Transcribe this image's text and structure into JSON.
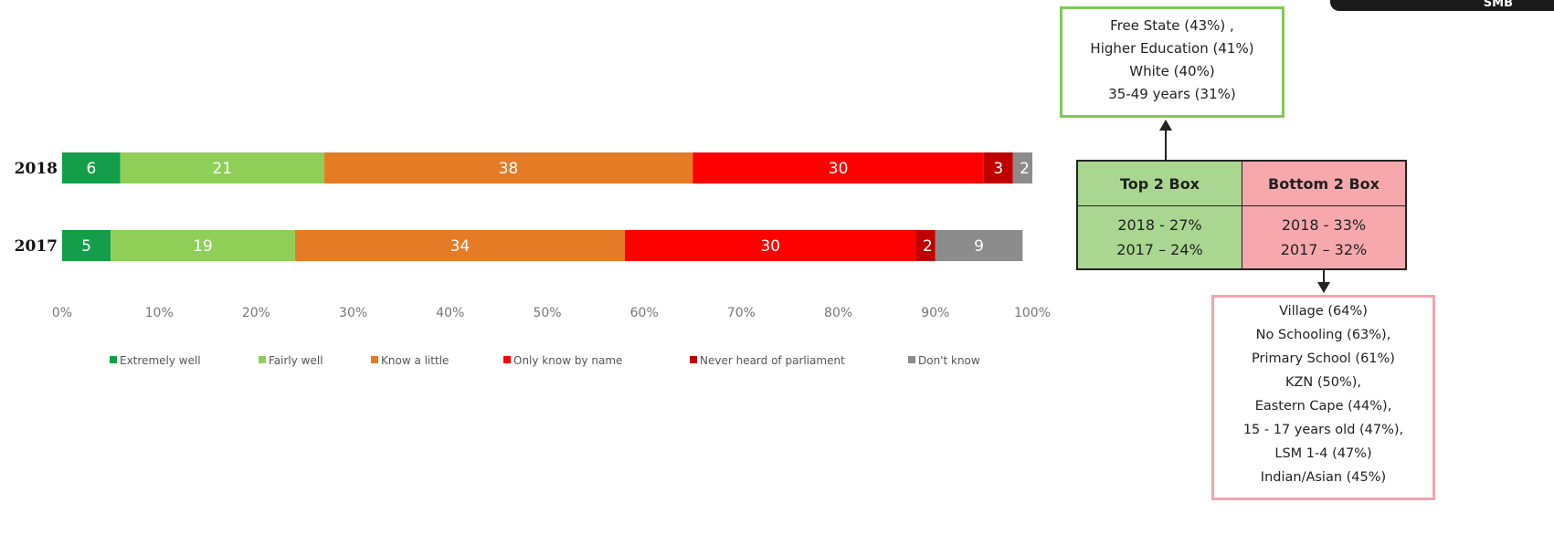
{
  "chart_data": {
    "type": "bar",
    "orientation": "horizontal",
    "stacked": true,
    "categories": [
      "2018",
      "2017"
    ],
    "series": [
      {
        "name": "Extremely well",
        "color": "#149e4a",
        "values": [
          6,
          5
        ]
      },
      {
        "name": "Fairly well",
        "color": "#8fcf57",
        "values": [
          21,
          19
        ]
      },
      {
        "name": "Know a little",
        "color": "#e67b25",
        "values": [
          38,
          34
        ]
      },
      {
        "name": "Only know by name",
        "color": "#fe0000",
        "values": [
          30,
          30
        ]
      },
      {
        "name": "Never heard of parliament",
        "color": "#c00000",
        "values": [
          3,
          2
        ]
      },
      {
        "name": "Don't know",
        "color": "#8c8c8c",
        "values": [
          2,
          9
        ]
      }
    ],
    "xlim": [
      0,
      100
    ],
    "x_ticks": [
      "0%",
      "10%",
      "20%",
      "30%",
      "40%",
      "50%",
      "60%",
      "70%",
      "80%",
      "90%",
      "100%"
    ],
    "grid": false,
    "legend_position": "bottom"
  },
  "top_callout": {
    "lines": [
      "Free State (43%) ,",
      "Higher Education (41%)",
      "White (40%)",
      "35-49 years (31%)"
    ]
  },
  "summary_table": {
    "top_header": "Top 2 Box",
    "bottom_header": "Bottom 2 Box",
    "top_2018": "2018 - 27%",
    "top_2017": "2017 – 24%",
    "bottom_2018": "2018 - 33%",
    "bottom_2017": "2017 – 32%"
  },
  "bottom_callout": {
    "lines": [
      "Village (64%)",
      "No Schooling (63%),",
      "Primary School (61%)",
      "KZN (50%),",
      "Eastern Cape (44%),",
      "15 - 17 years old (47%),",
      "LSM 1-4 (47%)",
      "Indian/Asian (45%)"
    ]
  },
  "corner_tab": {
    "label": "SMB"
  },
  "colors": {
    "top_box": "#a9d690",
    "bottom_box": "#f6a8ad",
    "top_border": "#7dcb56",
    "bottom_border": "#f3a3ac"
  }
}
